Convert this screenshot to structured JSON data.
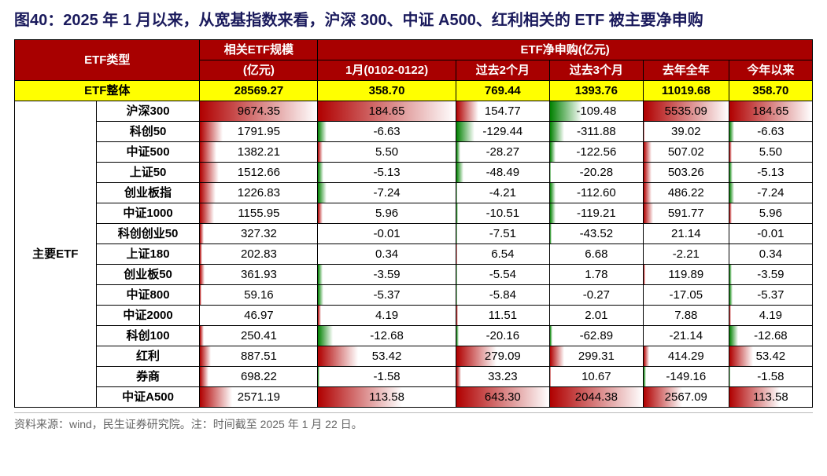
{
  "title": "图40：2025 年 1 月以来，从宽基指数来看，沪深 300、中证 A500、红利相关的 ETF 被主要净申购",
  "source": "资料来源：wind，民生证券研究院。注：时间截至 2025 年 1 月 22 日。",
  "colors": {
    "header_bg": "#a80000",
    "header_fg": "#ffffff",
    "highlight_bg": "#ffff00",
    "pos_grad_start": "#b00000",
    "pos_grad_end": "#ffffff",
    "neg_grad_start": "#008000",
    "neg_grad_end": "#ffffff",
    "border": "#000000"
  },
  "header": {
    "col_type": "ETF类型",
    "col_size": "相关ETF规模",
    "col_size_unit": "(亿元)",
    "col_net": "ETF净申购(亿元)",
    "col_jan": "1月(0102-0122)",
    "col_2m": "过去2个月",
    "col_3m": "过去3个月",
    "col_lastyear": "去年全年",
    "col_ytd": "今年以来"
  },
  "overall": {
    "label": "ETF整体",
    "size": "28569.27",
    "jan": "358.70",
    "m2": "769.44",
    "m3": "1393.76",
    "lastyear": "11019.68",
    "ytd": "358.70"
  },
  "category_label": "主要ETF",
  "rows": [
    {
      "name": "沪深300",
      "size": "9674.35",
      "size_pct": 100,
      "jan": "184.65",
      "jan_pct": 100,
      "m2": "154.77",
      "m2_pct": 24,
      "m3": "-109.48",
      "m3_pct": -35,
      "ly": "5535.09",
      "ly_pct": 100,
      "ytd": "184.65",
      "ytd_pct": 100
    },
    {
      "name": "科创50",
      "size": "1791.95",
      "size_pct": 19,
      "jan": "-6.63",
      "jan_pct": -6,
      "m2": "-129.44",
      "m2_pct": -20,
      "m3": "-311.88",
      "m3_pct": -15,
      "ly": "39.02",
      "ly_pct": 1,
      "ytd": "-6.63",
      "ytd_pct": -6
    },
    {
      "name": "中证500",
      "size": "1382.21",
      "size_pct": 14,
      "jan": "5.50",
      "jan_pct": 3,
      "m2": "-28.27",
      "m2_pct": -4,
      "m3": "-122.56",
      "m3_pct": -6,
      "ly": "507.02",
      "ly_pct": 9,
      "ytd": "5.50",
      "ytd_pct": 3
    },
    {
      "name": "上证50",
      "size": "1512.66",
      "size_pct": 16,
      "jan": "-5.13",
      "jan_pct": -4,
      "m2": "-48.49",
      "m2_pct": -8,
      "m3": "-20.28",
      "m3_pct": -1,
      "ly": "503.26",
      "ly_pct": 9,
      "ytd": "-5.13",
      "ytd_pct": -4
    },
    {
      "name": "创业板指",
      "size": "1226.83",
      "size_pct": 13,
      "jan": "-7.24",
      "jan_pct": -6,
      "m2": "-4.21",
      "m2_pct": -1,
      "m3": "-112.60",
      "m3_pct": -6,
      "ly": "486.22",
      "ly_pct": 9,
      "ytd": "-7.24",
      "ytd_pct": -6
    },
    {
      "name": "中证1000",
      "size": "1155.95",
      "size_pct": 12,
      "jan": "5.96",
      "jan_pct": 3,
      "m2": "-10.51",
      "m2_pct": -2,
      "m3": "-119.21",
      "m3_pct": -6,
      "ly": "591.77",
      "ly_pct": 11,
      "ytd": "5.96",
      "ytd_pct": 3
    },
    {
      "name": "科创创业50",
      "size": "327.32",
      "size_pct": 3,
      "jan": "-0.01",
      "jan_pct": 0,
      "m2": "-7.51",
      "m2_pct": -1,
      "m3": "-43.52",
      "m3_pct": -2,
      "ly": "21.14",
      "ly_pct": 0,
      "ytd": "-0.01",
      "ytd_pct": 0
    },
    {
      "name": "上证180",
      "size": "202.83",
      "size_pct": 2,
      "jan": "0.34",
      "jan_pct": 0,
      "m2": "6.54",
      "m2_pct": 1,
      "m3": "6.68",
      "m3_pct": 0,
      "ly": "-2.21",
      "ly_pct": 0,
      "ytd": "0.34",
      "ytd_pct": 0
    },
    {
      "name": "创业板50",
      "size": "361.93",
      "size_pct": 4,
      "jan": "-3.59",
      "jan_pct": -3,
      "m2": "-5.54",
      "m2_pct": -1,
      "m3": "1.78",
      "m3_pct": 0,
      "ly": "119.89",
      "ly_pct": 2,
      "ytd": "-3.59",
      "ytd_pct": -3
    },
    {
      "name": "中证800",
      "size": "59.16",
      "size_pct": 1,
      "jan": "-5.37",
      "jan_pct": -4,
      "m2": "-5.84",
      "m2_pct": -1,
      "m3": "-0.27",
      "m3_pct": 0,
      "ly": "-17.05",
      "ly_pct": 0,
      "ytd": "-5.37",
      "ytd_pct": -4
    },
    {
      "name": "中证2000",
      "size": "46.97",
      "size_pct": 0,
      "jan": "4.19",
      "jan_pct": 2,
      "m2": "11.51",
      "m2_pct": 2,
      "m3": "2.01",
      "m3_pct": 0,
      "ly": "7.88",
      "ly_pct": 0,
      "ytd": "4.19",
      "ytd_pct": 2
    },
    {
      "name": "科创100",
      "size": "250.41",
      "size_pct": 3,
      "jan": "-12.68",
      "jan_pct": -11,
      "m2": "-20.16",
      "m2_pct": -3,
      "m3": "-62.89",
      "m3_pct": -3,
      "ly": "-21.14",
      "ly_pct": 0,
      "ytd": "-12.68",
      "ytd_pct": -11
    },
    {
      "name": "红利",
      "size": "887.51",
      "size_pct": 9,
      "jan": "53.42",
      "jan_pct": 29,
      "m2": "279.09",
      "m2_pct": 43,
      "m3": "299.31",
      "m3_pct": 15,
      "ly": "414.29",
      "ly_pct": 7,
      "ytd": "53.42",
      "ytd_pct": 29
    },
    {
      "name": "券商",
      "size": "698.22",
      "size_pct": 7,
      "jan": "-1.58",
      "jan_pct": -1,
      "m2": "33.23",
      "m2_pct": 5,
      "m3": "10.67",
      "m3_pct": 1,
      "ly": "-149.16",
      "ly_pct": -3,
      "ytd": "-1.58",
      "ytd_pct": -1
    },
    {
      "name": "中证A500",
      "size": "2571.19",
      "size_pct": 27,
      "jan": "113.58",
      "jan_pct": 61,
      "m2": "643.30",
      "m2_pct": 100,
      "m3": "2044.38",
      "m3_pct": 100,
      "ly": "2567.09",
      "ly_pct": 46,
      "ytd": "113.58",
      "ytd_pct": 61
    }
  ]
}
